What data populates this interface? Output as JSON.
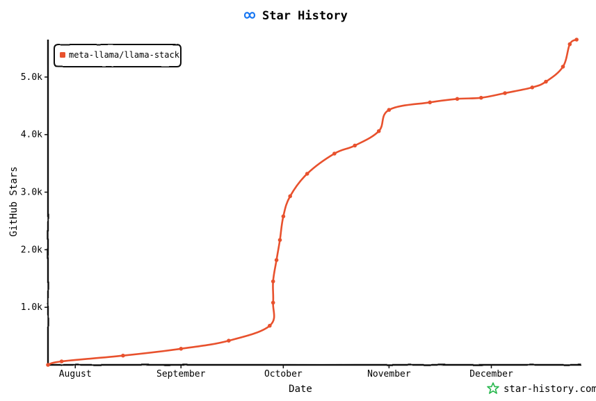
{
  "header": {
    "title": "Star History",
    "logo_icon": "meta-infinity-icon",
    "logo_color": "#1877f2"
  },
  "watermark": {
    "text": "star-history.com",
    "icon": "star-history-star-icon",
    "icon_color": "#26b74c"
  },
  "chart_data": {
    "type": "line",
    "title": "Star History",
    "xlabel": "Date",
    "ylabel": "GitHub Stars",
    "x_ticks": [
      "August",
      "September",
      "October",
      "November",
      "December"
    ],
    "x_tick_dates": [
      "2024-08-01",
      "2024-09-01",
      "2024-10-01",
      "2024-11-01",
      "2024-12-01"
    ],
    "y_ticks": [
      1000,
      2000,
      3000,
      4000,
      5000
    ],
    "y_tick_labels": [
      "1.0k",
      "2.0k",
      "3.0k",
      "4.0k",
      "5.0k"
    ],
    "xlim": [
      "2024-07-24",
      "2024-12-27"
    ],
    "ylim": [
      0,
      5650
    ],
    "legend_position": "top-left",
    "series": [
      {
        "name": "meta-llama/llama-stack",
        "color": "#e8512d",
        "x": [
          "2024-07-24",
          "2024-07-28",
          "2024-08-15",
          "2024-09-01",
          "2024-09-15",
          "2024-09-27",
          "2024-09-28",
          "2024-09-28",
          "2024-09-29",
          "2024-09-30",
          "2024-10-01",
          "2024-10-03",
          "2024-10-08",
          "2024-10-16",
          "2024-10-22",
          "2024-10-29",
          "2024-11-01",
          "2024-11-13",
          "2024-11-21",
          "2024-11-28",
          "2024-12-05",
          "2024-12-13",
          "2024-12-17",
          "2024-12-22",
          "2024-12-24",
          "2024-12-26"
        ],
        "y": [
          0,
          60,
          160,
          280,
          420,
          680,
          1080,
          1450,
          1820,
          2170,
          2580,
          2930,
          3320,
          3670,
          3810,
          4060,
          4430,
          4560,
          4620,
          4640,
          4720,
          4820,
          4920,
          5180,
          5570,
          5650
        ]
      }
    ]
  }
}
